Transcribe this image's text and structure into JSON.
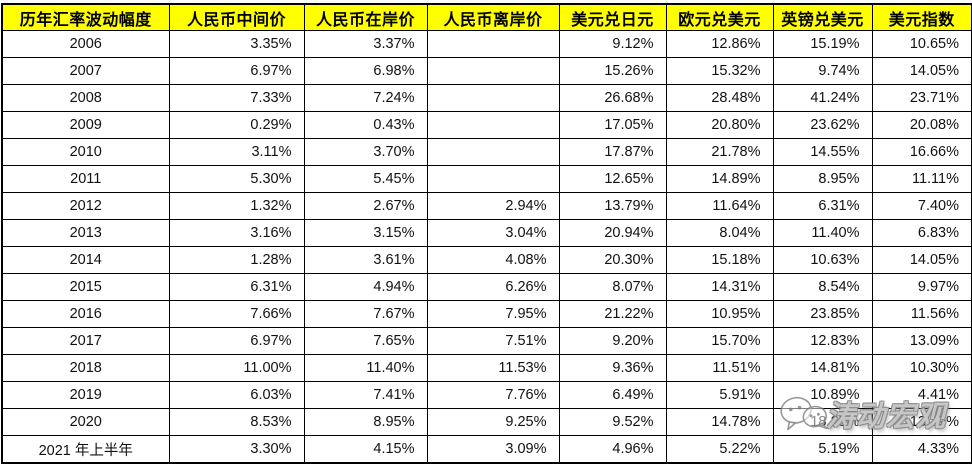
{
  "table": {
    "columns": [
      "历年汇率波动幅度",
      "人民币中间价",
      "人民币在岸价",
      "人民币离岸价",
      "美元兑日元",
      "欧元兑美元",
      "英镑兑美元",
      "美元指数"
    ],
    "rows": [
      {
        "year": "2006",
        "values": [
          "3.35%",
          "3.37%",
          "",
          "9.12%",
          "12.86%",
          "15.19%",
          "10.65%"
        ]
      },
      {
        "year": "2007",
        "values": [
          "6.97%",
          "6.98%",
          "",
          "15.26%",
          "15.32%",
          "9.74%",
          "14.05%"
        ]
      },
      {
        "year": "2008",
        "values": [
          "7.33%",
          "7.24%",
          "",
          "26.68%",
          "28.48%",
          "41.24%",
          "23.71%"
        ]
      },
      {
        "year": "2009",
        "values": [
          "0.29%",
          "0.43%",
          "",
          "17.05%",
          "20.80%",
          "23.62%",
          "20.08%"
        ]
      },
      {
        "year": "2010",
        "values": [
          "3.11%",
          "3.70%",
          "",
          "17.87%",
          "21.78%",
          "14.55%",
          "16.66%"
        ]
      },
      {
        "year": "2011",
        "values": [
          "5.30%",
          "5.45%",
          "",
          "12.65%",
          "14.89%",
          "8.95%",
          "11.11%"
        ]
      },
      {
        "year": "2012",
        "values": [
          "1.32%",
          "2.67%",
          "2.94%",
          "13.79%",
          "11.64%",
          "6.31%",
          "7.40%"
        ]
      },
      {
        "year": "2013",
        "values": [
          "3.16%",
          "3.15%",
          "3.04%",
          "20.94%",
          "8.04%",
          "11.40%",
          "6.83%"
        ]
      },
      {
        "year": "2014",
        "values": [
          "1.28%",
          "3.61%",
          "4.08%",
          "20.30%",
          "15.18%",
          "10.63%",
          "14.05%"
        ]
      },
      {
        "year": "2015",
        "values": [
          "6.31%",
          "4.94%",
          "6.26%",
          "8.07%",
          "14.31%",
          "8.54%",
          "9.97%"
        ]
      },
      {
        "year": "2016",
        "values": [
          "7.66%",
          "7.67%",
          "7.95%",
          "21.22%",
          "10.95%",
          "23.85%",
          "11.56%"
        ]
      },
      {
        "year": "2017",
        "values": [
          "6.97%",
          "7.65%",
          "7.51%",
          "9.20%",
          "15.70%",
          "12.83%",
          "13.09%"
        ]
      },
      {
        "year": "2018",
        "values": [
          "11.00%",
          "11.40%",
          "11.53%",
          "9.36%",
          "11.51%",
          "14.81%",
          "10.30%"
        ]
      },
      {
        "year": "2019",
        "values": [
          "6.03%",
          "7.41%",
          "7.76%",
          "6.49%",
          "5.91%",
          "10.89%",
          "4.41%"
        ]
      },
      {
        "year": "2020",
        "values": [
          "8.53%",
          "8.95%",
          "9.25%",
          "9.52%",
          "14.78%",
          "18.25%",
          "13.39%"
        ]
      },
      {
        "year": "2021 年上半年",
        "values": [
          "3.30%",
          "4.15%",
          "3.09%",
          "4.96%",
          "5.22%",
          "5.19%",
          "4.33%"
        ]
      }
    ]
  },
  "watermark": {
    "text": "涛动宏观",
    "icon": "wechat-icon"
  },
  "colors": {
    "header_bg": "#FFFF00",
    "header_text": "#000000",
    "border": "#000000",
    "body_bg": "#FFFFFF"
  }
}
